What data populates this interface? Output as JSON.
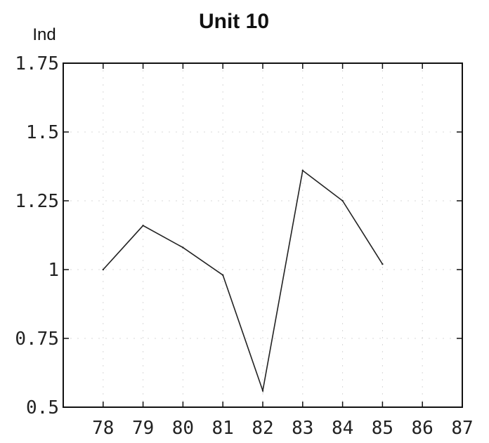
{
  "chart_data": {
    "type": "line",
    "title": "Unit 10",
    "xlabel": "",
    "ylabel": "Ind",
    "x_ticks": [
      "78",
      "79",
      "80",
      "81",
      "82",
      "83",
      "84",
      "85",
      "86",
      "87"
    ],
    "y_ticks": [
      "0.5",
      "0.75",
      "1",
      "1.25",
      "1.5",
      "1.75"
    ],
    "ylim": [
      0.5,
      1.75
    ],
    "xlim": [
      77,
      87
    ],
    "grid": true,
    "series": [
      {
        "x": [
          78,
          79,
          80,
          81,
          82,
          83,
          84,
          85
        ],
        "values": [
          1.0,
          1.16,
          1.08,
          0.98,
          0.56,
          1.36,
          1.25,
          1.02
        ]
      }
    ]
  }
}
